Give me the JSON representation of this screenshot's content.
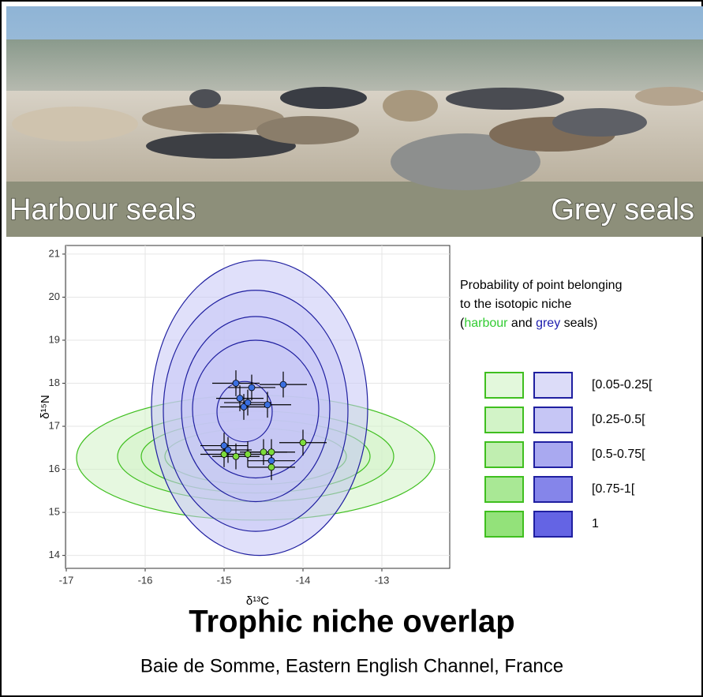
{
  "photo_labels": [
    "Harbour seals",
    "Grey seals"
  ],
  "chart_data": {
    "type": "scatter",
    "xlabel": "δ¹³C",
    "ylabel": "δ¹⁵N",
    "xlim": [
      -17.01,
      -12.14
    ],
    "ylim": [
      13.7,
      21.2
    ],
    "xticks": [
      -17,
      -16,
      -15,
      -14,
      -13
    ],
    "yticks": [
      14,
      15,
      16,
      17,
      18,
      19,
      20,
      21
    ],
    "grid": true,
    "series": [
      {
        "name": "harbour",
        "color": "#7ddc3c",
        "stroke": "#3fbf1f",
        "text_color": "#33cc33",
        "x": [
          -15.0,
          -14.85,
          -14.7,
          -14.5,
          -14.4,
          -14.4,
          -14.0
        ],
        "y": [
          16.35,
          16.3,
          16.35,
          16.4,
          16.4,
          16.05,
          16.62
        ],
        "xerr": 0.3,
        "yerr": 0.3,
        "ellipses": [
          {
            "cx": -14.6,
            "cy": 16.27,
            "rx": 2.27,
            "ry": 1.45
          },
          {
            "cx": -14.6,
            "cy": 16.3,
            "rx": 1.75,
            "ry": 1.05
          },
          {
            "cx": -14.6,
            "cy": 16.3,
            "rx": 1.45,
            "ry": 0.85
          },
          {
            "cx": -14.6,
            "cy": 16.3,
            "rx": 1.15,
            "ry": 0.65
          }
        ],
        "level_colors": [
          "#e3f8dc",
          "#d2f3c7",
          "#c0eeb0",
          "#a9e895",
          "#93e27a"
        ]
      },
      {
        "name": "grey",
        "color": "#3a6fe0",
        "stroke": "#1f1fa0",
        "text_color": "#2020b0",
        "x": [
          -14.85,
          -14.8,
          -14.75,
          -14.65,
          -14.7,
          -14.45,
          -14.25,
          -15.0,
          -14.95,
          -14.4
        ],
        "y": [
          18.0,
          17.65,
          17.45,
          17.9,
          17.55,
          17.5,
          17.97,
          16.55,
          16.45,
          16.2
        ],
        "xerr": 0.3,
        "yerr": 0.3,
        "ellipses": [
          {
            "cx": -14.55,
            "cy": 17.43,
            "rx": 1.37,
            "ry": 3.43
          },
          {
            "cx": -14.6,
            "cy": 17.36,
            "rx": 1.17,
            "ry": 2.8
          },
          {
            "cx": -14.6,
            "cy": 17.4,
            "rx": 0.94,
            "ry": 2.15
          },
          {
            "cx": -14.6,
            "cy": 17.4,
            "rx": 0.8,
            "ry": 1.6
          },
          {
            "cx": -14.74,
            "cy": 17.34,
            "rx": 0.35,
            "ry": 0.7
          }
        ],
        "level_colors": [
          "#dcdcf8",
          "#c6c6f5",
          "#a9a9f0",
          "#8585ea",
          "#6464e4"
        ]
      }
    ],
    "legend_title": [
      "Probability of point belonging",
      "to the isotopic niche",
      "(",
      " and ",
      " seals)"
    ],
    "legend_levels": [
      "[0.05-0.25[",
      "[0.25-0.5[",
      "[0.5-0.75[",
      "[0.75-1[",
      "1"
    ]
  },
  "title": "Trophic niche overlap",
  "subtitle": "Baie de Somme, Eastern English Channel, France"
}
